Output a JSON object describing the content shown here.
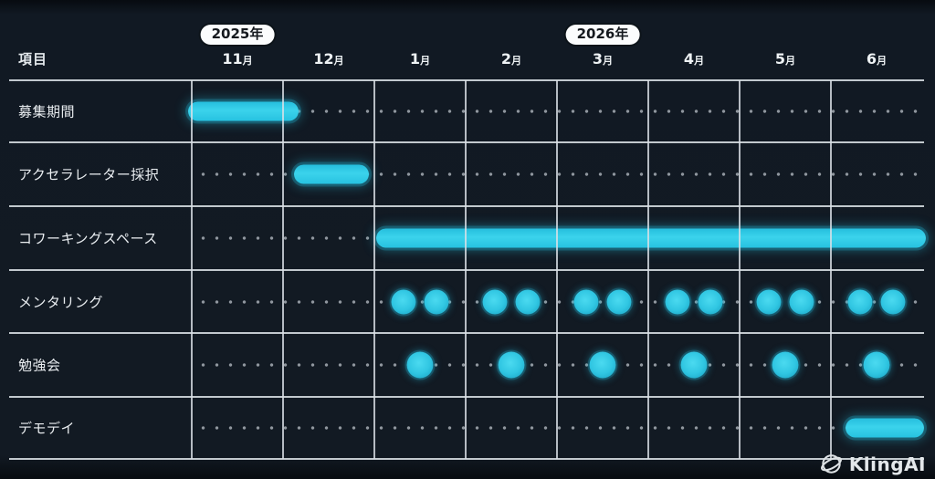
{
  "header": {
    "items_label": "項目",
    "months": [
      "11月",
      "12月",
      "1月",
      "2月",
      "3月",
      "4月",
      "5月",
      "6月"
    ],
    "year_badges": [
      {
        "label": "2025年",
        "month_index": 0
      },
      {
        "label": "2026年",
        "month_index": 4
      }
    ]
  },
  "chart_data": {
    "type": "bar",
    "subtype": "gantt-timeline",
    "title": "",
    "x_categories": [
      "2025年11月",
      "2025年12月",
      "2026年1月",
      "2026年2月",
      "2026年3月",
      "2026年4月",
      "2026年5月",
      "2026年6月"
    ],
    "grid": true,
    "legend": false,
    "rows": [
      {
        "label": "募集期間",
        "kind": "bar",
        "start_month": -0.04,
        "end_month": 1.17
      },
      {
        "label": "アクセラレーター採択",
        "kind": "bar",
        "start_month": 1.12,
        "end_month": 1.94
      },
      {
        "label": "コワーキングスペース",
        "kind": "bar",
        "start_month": 2.02,
        "end_month": 8.04
      },
      {
        "label": "メンタリング",
        "kind": "dots",
        "months": [
          2,
          3,
          4,
          5,
          6,
          7
        ],
        "offsets": [
          0.32,
          0.68
        ],
        "dot_size": 27
      },
      {
        "label": "勉強会",
        "kind": "dots",
        "months": [
          2,
          3,
          4,
          5,
          6,
          7
        ],
        "offsets": [
          0.5
        ],
        "dot_size": 29
      },
      {
        "label": "デモデイ",
        "kind": "bar",
        "start_month": 7.16,
        "end_month": 8.02
      }
    ]
  },
  "watermark": {
    "label": "KlingAI"
  },
  "colors": {
    "background": "#121a23",
    "grid_line": "#dbe1e6",
    "leader_dot": "#b9c0c7",
    "accent_cyan": "#2ec9e6",
    "badge_bg": "#fbfcfd",
    "badge_text": "#15191e",
    "label_text": "#e9edf0"
  }
}
